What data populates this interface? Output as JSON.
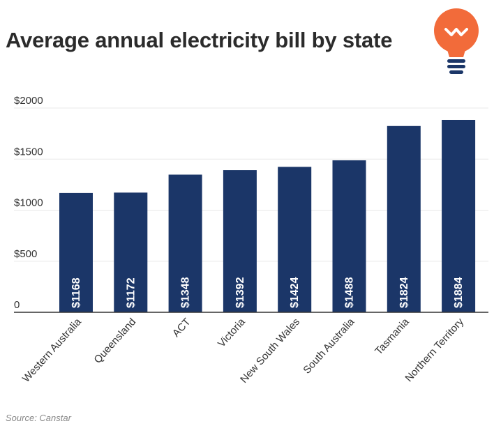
{
  "header": {
    "title": "Average annual electricity bill by state"
  },
  "footer": {
    "source": "Source: Canstar"
  },
  "icons": {
    "logo": "lightbulb-icon"
  },
  "colors": {
    "bar": "#1b3668",
    "logo": "#f26b3a",
    "logo_base": "#1b3668",
    "grid": "#e8e8e8",
    "axis": "#333333"
  },
  "chart_data": {
    "type": "bar",
    "title": "Average annual electricity bill by state",
    "xlabel": "",
    "ylabel": "",
    "categories": [
      "Western Australia",
      "Queensland",
      "ACT",
      "Victoria",
      "New South Wales",
      "South Australia",
      "Tasmania",
      "Northern Territory"
    ],
    "values": [
      1168,
      1172,
      1348,
      1392,
      1424,
      1488,
      1824,
      1884
    ],
    "value_labels": [
      "$1168",
      "$1172",
      "$1348",
      "$1392",
      "$1424",
      "$1488",
      "$1824",
      "$1884"
    ],
    "yticks": [
      0,
      500,
      1000,
      1500,
      2000
    ],
    "ytick_labels": [
      "0",
      "$500",
      "$1000",
      "$1500",
      "$2000"
    ],
    "ylim": [
      0,
      2000
    ],
    "grid": true,
    "legend": "none"
  }
}
